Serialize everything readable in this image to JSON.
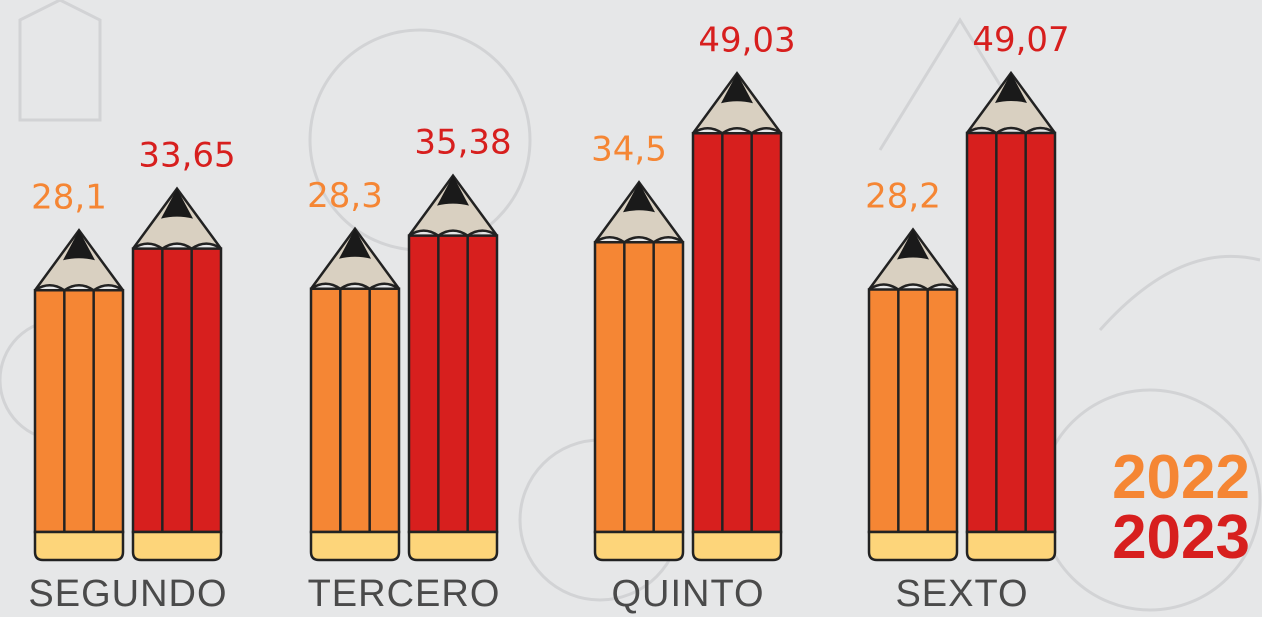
{
  "chart_data": {
    "type": "bar",
    "categories": [
      "SEGUNDO",
      "TERCERO",
      "QUINTO",
      "SEXTO"
    ],
    "series": [
      {
        "name": "2022",
        "color": "#f58634",
        "values": [
          28.1,
          28.3,
          34.5,
          28.2
        ],
        "value_labels": [
          "28,1",
          "28,3",
          "34,5",
          "28,2"
        ]
      },
      {
        "name": "2023",
        "color": "#d71f1e",
        "values": [
          33.65,
          35.38,
          49.03,
          49.07
        ],
        "value_labels": [
          "33,65",
          "35,38",
          "49,03",
          "49,07"
        ]
      }
    ]
  }
}
